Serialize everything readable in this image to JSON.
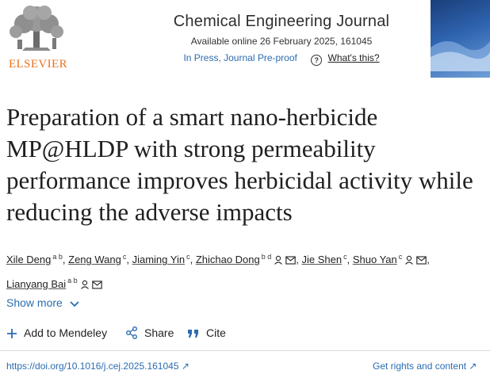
{
  "header": {
    "publisher_logo_text": "ELSEVIER",
    "journal_title": "Chemical Engineering Journal",
    "available_text": "Available online 26 February 2025, 161045",
    "status_text": "In Press, Journal Pre-proof",
    "help_glyph": "?",
    "whats_this_label": "What's this?"
  },
  "article": {
    "title": "Preparation of a smart nano-herbicide MP@HLDP with strong permeability performance improves herbicidal activity while reducing the adverse impacts"
  },
  "authors": [
    {
      "name": "Xile Deng",
      "aff": "a b",
      "icons": []
    },
    {
      "name": "Zeng Wang",
      "aff": "c",
      "icons": []
    },
    {
      "name": "Jiaming Yin",
      "aff": "c",
      "icons": []
    },
    {
      "name": "Zhichao Dong",
      "aff": "b d",
      "icons": [
        "person-icon",
        "envelope-icon"
      ]
    },
    {
      "name": "Jie Shen",
      "aff": "c",
      "icons": []
    },
    {
      "name": "Shuo Yan",
      "aff": "c",
      "icons": [
        "person-icon",
        "envelope-icon"
      ]
    },
    {
      "name": "Lianyang Bai",
      "aff": "a b",
      "icons": [
        "person-icon",
        "envelope-icon"
      ]
    }
  ],
  "show_more_label": "Show more",
  "actions": {
    "mendeley_label": "Add to Mendeley",
    "share_label": "Share",
    "cite_label": "Cite"
  },
  "footer": {
    "doi": "https://doi.org/10.1016/j.cej.2025.161045",
    "rights": "Get rights and content"
  },
  "colors": {
    "link": "#2b6cb0",
    "elsevier_orange": "#e9711c",
    "cover": "#2f64b0"
  }
}
